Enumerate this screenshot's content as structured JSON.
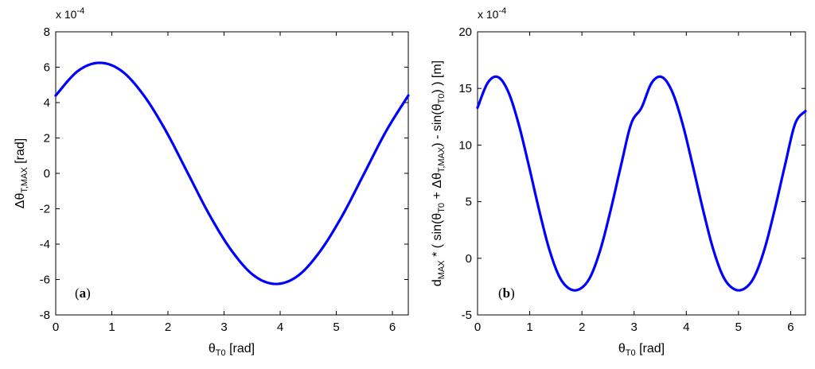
{
  "chart_data": [
    {
      "type": "line",
      "panel_label": "a",
      "axis_scale_note": {
        "base": "x 10",
        "exponent": "-4"
      },
      "xlabel": {
        "base": "θ",
        "sub": "T0",
        "unit": " [rad]"
      },
      "ylabel": {
        "prefix": "Δθ",
        "sub": "T,MAX",
        "unit": " [rad]"
      },
      "xlim": [
        0,
        6.2832
      ],
      "ylim": [
        -8,
        8
      ],
      "x_ticks": [
        0,
        1,
        2,
        3,
        4,
        5,
        6
      ],
      "y_ticks": [
        -8,
        -6,
        -4,
        -2,
        0,
        2,
        4,
        6,
        8
      ],
      "series": [
        {
          "color": "#0000ff",
          "x": [
            0,
            0.393,
            0.785,
            1.178,
            1.571,
            1.963,
            2.356,
            2.749,
            3.142,
            3.534,
            3.927,
            4.32,
            4.712,
            5.105,
            5.498,
            5.89,
            6.283
          ],
          "y": [
            4.4,
            5.78,
            6.25,
            5.78,
            4.4,
            2.4,
            0,
            -2.4,
            -4.4,
            -5.78,
            -6.25,
            -5.78,
            -4.4,
            -2.4,
            0,
            2.4,
            4.4
          ]
        }
      ]
    },
    {
      "type": "line",
      "panel_label": "b",
      "axis_scale_note": {
        "base": "x 10",
        "exponent": "-4"
      },
      "xlabel": {
        "base": "θ",
        "sub": "T0",
        "unit": " [rad]"
      },
      "ylabel": {
        "parts": [
          {
            "t": "d"
          },
          {
            "t": "MAX",
            "sub": true
          },
          {
            "t": " * ( sin(θ"
          },
          {
            "t": "T0",
            "sub": true
          },
          {
            "t": " + Δθ"
          },
          {
            "t": "T,MAX",
            "sub": true
          },
          {
            "t": ") - sin(θ"
          },
          {
            "t": "T0",
            "sub": true
          },
          {
            "t": ") ) [m]"
          }
        ]
      },
      "xlim": [
        0,
        6.2832
      ],
      "ylim": [
        -5,
        20
      ],
      "x_ticks": [
        0,
        1,
        2,
        3,
        4,
        5,
        6
      ],
      "y_ticks": [
        -5,
        0,
        5,
        10,
        15,
        20
      ],
      "series": [
        {
          "color": "#0000ff",
          "x": [
            0,
            0.196,
            0.393,
            0.589,
            0.785,
            0.982,
            1.178,
            1.374,
            1.571,
            1.767,
            1.963,
            2.16,
            2.356,
            2.553,
            2.749,
            2.945,
            3.142,
            3.338,
            3.534,
            3.731,
            3.927,
            4.123,
            4.32,
            4.516,
            4.712,
            4.909,
            5.105,
            5.301,
            5.498,
            5.694,
            5.89,
            6.087,
            6.283
          ],
          "y": [
            13.3,
            15.5,
            16.0,
            14.7,
            11.9,
            8.2,
            4.3,
            0.8,
            -1.65,
            -2.7,
            -2.7,
            -1.65,
            0.8,
            4.3,
            8.2,
            11.9,
            13.3,
            15.5,
            16.0,
            14.7,
            11.9,
            8.2,
            4.3,
            0.8,
            -1.65,
            -2.7,
            -2.7,
            -1.65,
            0.8,
            4.3,
            8.2,
            11.9,
            13.0
          ]
        }
      ]
    }
  ]
}
